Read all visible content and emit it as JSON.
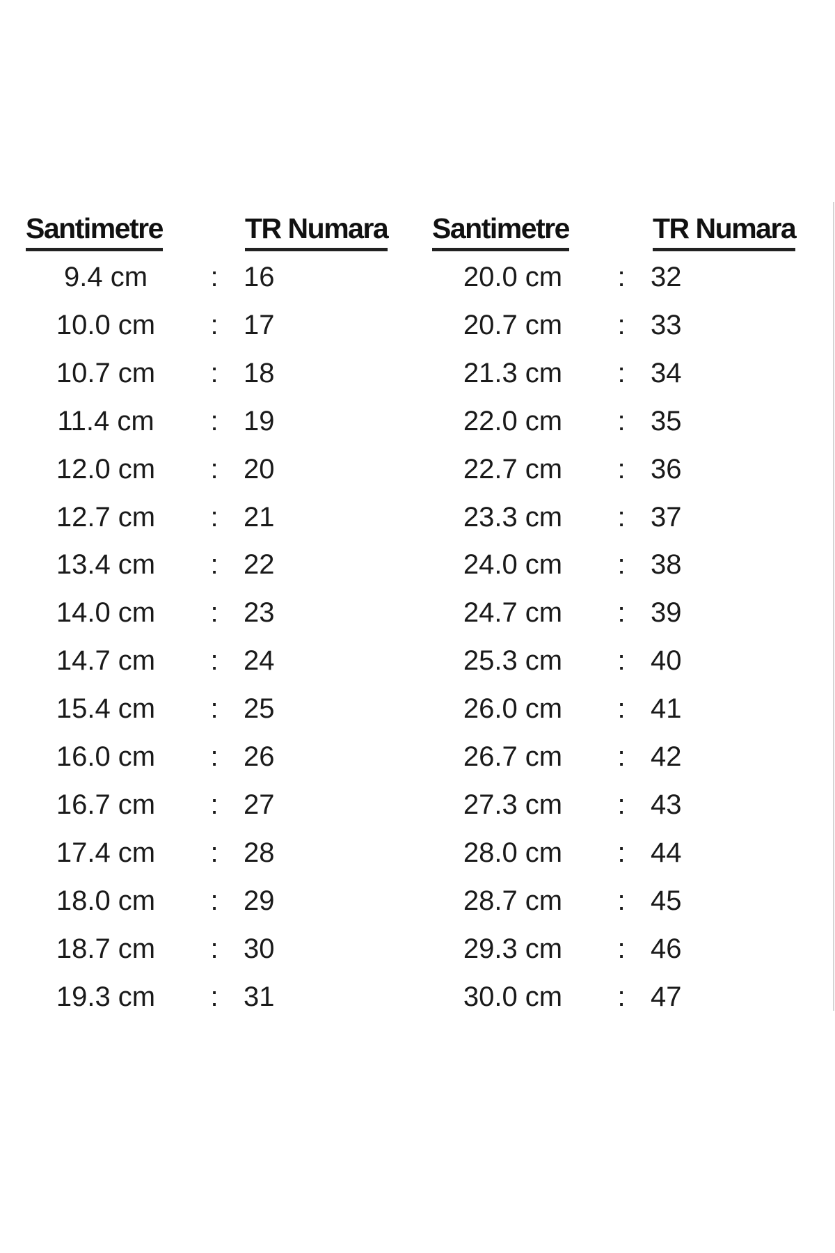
{
  "headers": [
    "Santimetre",
    "TR Numara",
    "Santimetre",
    "TR Numara"
  ],
  "separator": ":",
  "left_rows": [
    [
      "9.4 cm",
      "16"
    ],
    [
      "10.0 cm",
      "17"
    ],
    [
      "10.7 cm",
      "18"
    ],
    [
      "11.4 cm",
      "19"
    ],
    [
      "12.0 cm",
      "20"
    ],
    [
      "12.7 cm",
      "21"
    ],
    [
      "13.4 cm",
      "22"
    ],
    [
      "14.0 cm",
      "23"
    ],
    [
      "14.7 cm",
      "24"
    ],
    [
      "15.4 cm",
      "25"
    ],
    [
      "16.0 cm",
      "26"
    ],
    [
      "16.7 cm",
      "27"
    ],
    [
      "17.4 cm",
      "28"
    ],
    [
      "18.0 cm",
      "29"
    ],
    [
      "18.7 cm",
      "30"
    ],
    [
      "19.3 cm",
      "31"
    ]
  ],
  "right_rows": [
    [
      "20.0 cm",
      "32"
    ],
    [
      "20.7 cm",
      "33"
    ],
    [
      "21.3 cm",
      "34"
    ],
    [
      "22.0 cm",
      "35"
    ],
    [
      "22.7 cm",
      "36"
    ],
    [
      "23.3 cm",
      "37"
    ],
    [
      "24.0 cm",
      "38"
    ],
    [
      "24.7 cm",
      "39"
    ],
    [
      "25.3 cm",
      "40"
    ],
    [
      "26.0 cm",
      "41"
    ],
    [
      "26.7 cm",
      "42"
    ],
    [
      "27.3 cm",
      "43"
    ],
    [
      "28.0 cm",
      "44"
    ],
    [
      "28.7 cm",
      "45"
    ],
    [
      "29.3 cm",
      "46"
    ],
    [
      "30.0 cm",
      "47"
    ]
  ]
}
